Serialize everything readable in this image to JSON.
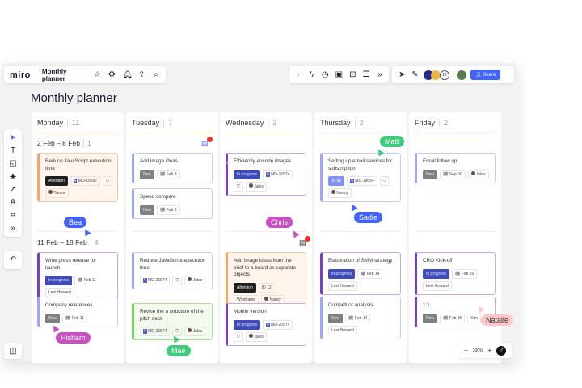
{
  "app": {
    "logo": "miro",
    "board_title": "Monthly planner",
    "share": "Share",
    "collaborator_count": "12",
    "zoom": "100%",
    "help": "?"
  },
  "page_title": "Monthly planner",
  "colors": {
    "accent": "#4262ff",
    "attention": "#1e1e1e",
    "new": "#808080",
    "in_progress": "#3f4bb8",
    "to_do": "#8090f8"
  },
  "columns": [
    {
      "name": "Monday",
      "count": "11",
      "line": "#f5b27a",
      "groups": [
        {
          "label": "2 Feb – 8 Feb",
          "count": "1"
        },
        {
          "label": "11 Feb – 18 Feb",
          "count": "4"
        }
      ]
    },
    {
      "name": "Tuesday",
      "count": "7",
      "line": "#e6dc8a"
    },
    {
      "name": "Wednesday",
      "count": "2",
      "line": "#b9dc8a"
    },
    {
      "name": "Thursday",
      "count": "2",
      "line": "#8e7fd6"
    },
    {
      "name": "Friday",
      "count": "2",
      "line": "#8e7fd6"
    }
  ],
  "cards": [
    {
      "col": 0,
      "style": "orange",
      "title": "Reduce JavaScript execution time",
      "tags": [
        [
          "attention",
          "Attention"
        ],
        [
          "id",
          "MD-19667"
        ],
        [
          "icon",
          "⛉"
        ],
        [
          "person",
          "Trevor"
        ]
      ]
    },
    {
      "col": 0,
      "style": "purple",
      "title": "Write press release for launch",
      "tags": [
        [
          "inprogress",
          "In progress"
        ],
        [
          "date",
          "Feb 11"
        ],
        [
          "text",
          "Lexi Howard"
        ]
      ]
    },
    {
      "col": 0,
      "style": "blue",
      "title": "Company references",
      "tags": [
        [
          "new",
          "New"
        ],
        [
          "date",
          "Feb 11"
        ]
      ]
    },
    {
      "col": 1,
      "style": "blue",
      "title": "Add image ideas",
      "tags": [
        [
          "new",
          "New"
        ],
        [
          "date",
          "Feb 3"
        ]
      ]
    },
    {
      "col": 1,
      "style": "blue",
      "title": "Speed compare",
      "tags": [
        [
          "new",
          "New"
        ],
        [
          "date",
          "Feb 3"
        ]
      ]
    },
    {
      "col": 1,
      "style": "blue",
      "title": "Reduce JavaScript execution time",
      "tags": [
        [
          "id",
          "MD-26574"
        ],
        [
          "icon",
          "⛉"
        ],
        [
          "person",
          "Jules"
        ]
      ]
    },
    {
      "col": 1,
      "style": "green",
      "title": "Revise the a structure of the pitch deck",
      "tags": [
        [
          "id",
          "MD-26574"
        ],
        [
          "icon",
          "⛉"
        ],
        [
          "person",
          "Jules"
        ]
      ]
    },
    {
      "col": 2,
      "style": "purple",
      "title": "Efficiently encode images",
      "tags": [
        [
          "inprogress",
          "In progress"
        ],
        [
          "id",
          "MD-26574"
        ],
        [
          "icon",
          "⛉"
        ],
        [
          "person",
          "Jules"
        ]
      ]
    },
    {
      "col": 2,
      "style": "orange",
      "title": "Add image ideas from the brief to a board as separate objects",
      "tags": [
        [
          "attention",
          "Attention"
        ],
        [
          "text",
          "ID 12"
        ],
        [
          "text",
          "Wireframe"
        ],
        [
          "person",
          "Nancy"
        ]
      ]
    },
    {
      "col": 2,
      "style": "purple",
      "title": "Mobile version",
      "tags": [
        [
          "inprogress",
          "In progress"
        ],
        [
          "id",
          "MD-26574"
        ],
        [
          "icon",
          "⛉"
        ],
        [
          "person",
          "Jules"
        ]
      ]
    },
    {
      "col": 3,
      "style": "blue",
      "title": "Setting up email services for subscription",
      "tags": [
        [
          "todo",
          "To do"
        ],
        [
          "id",
          "MD-19654"
        ],
        [
          "icon",
          "⛉"
        ],
        [
          "person",
          "Nancy"
        ]
      ]
    },
    {
      "col": 3,
      "style": "purple",
      "title": "Elaboration of SMM strategy",
      "tags": [
        [
          "inprogress",
          "In progress"
        ],
        [
          "date",
          "Feb 14"
        ],
        [
          "text",
          "Lexi Howard"
        ]
      ]
    },
    {
      "col": 3,
      "style": "blue",
      "title": "Competitor analysis",
      "tags": [
        [
          "new",
          "New"
        ],
        [
          "date",
          "Feb 14"
        ],
        [
          "text",
          "Lexi Howard"
        ]
      ]
    },
    {
      "col": 4,
      "style": "blue",
      "title": "Email follow up",
      "tags": [
        [
          "new",
          "New"
        ],
        [
          "date",
          "Sep 30"
        ],
        [
          "person",
          "Jules"
        ]
      ]
    },
    {
      "col": 4,
      "style": "purple",
      "title": "CRO Kick-off",
      "tags": [
        [
          "inprogress",
          "In progress"
        ],
        [
          "date",
          "Feb 15"
        ],
        [
          "text",
          "Lexi Howard"
        ]
      ]
    },
    {
      "col": 4,
      "style": "purple",
      "title": "1:1",
      "tags": [
        [
          "new",
          "New"
        ],
        [
          "date",
          "Feb 15"
        ],
        [
          "text",
          "Kim"
        ]
      ]
    }
  ],
  "cursors": [
    {
      "name": "Bea",
      "color": "#4262ff"
    },
    {
      "name": "Chris",
      "color": "#c94fc2"
    },
    {
      "name": "Matt",
      "color": "#3fcb7b"
    },
    {
      "name": "Sadie",
      "color": "#4262ff"
    },
    {
      "name": "Hisham",
      "color": "#c94fc2"
    },
    {
      "name": "Mae",
      "color": "#3fcb7b"
    },
    {
      "name": "Natalie",
      "color": "#ffc6c6"
    }
  ]
}
